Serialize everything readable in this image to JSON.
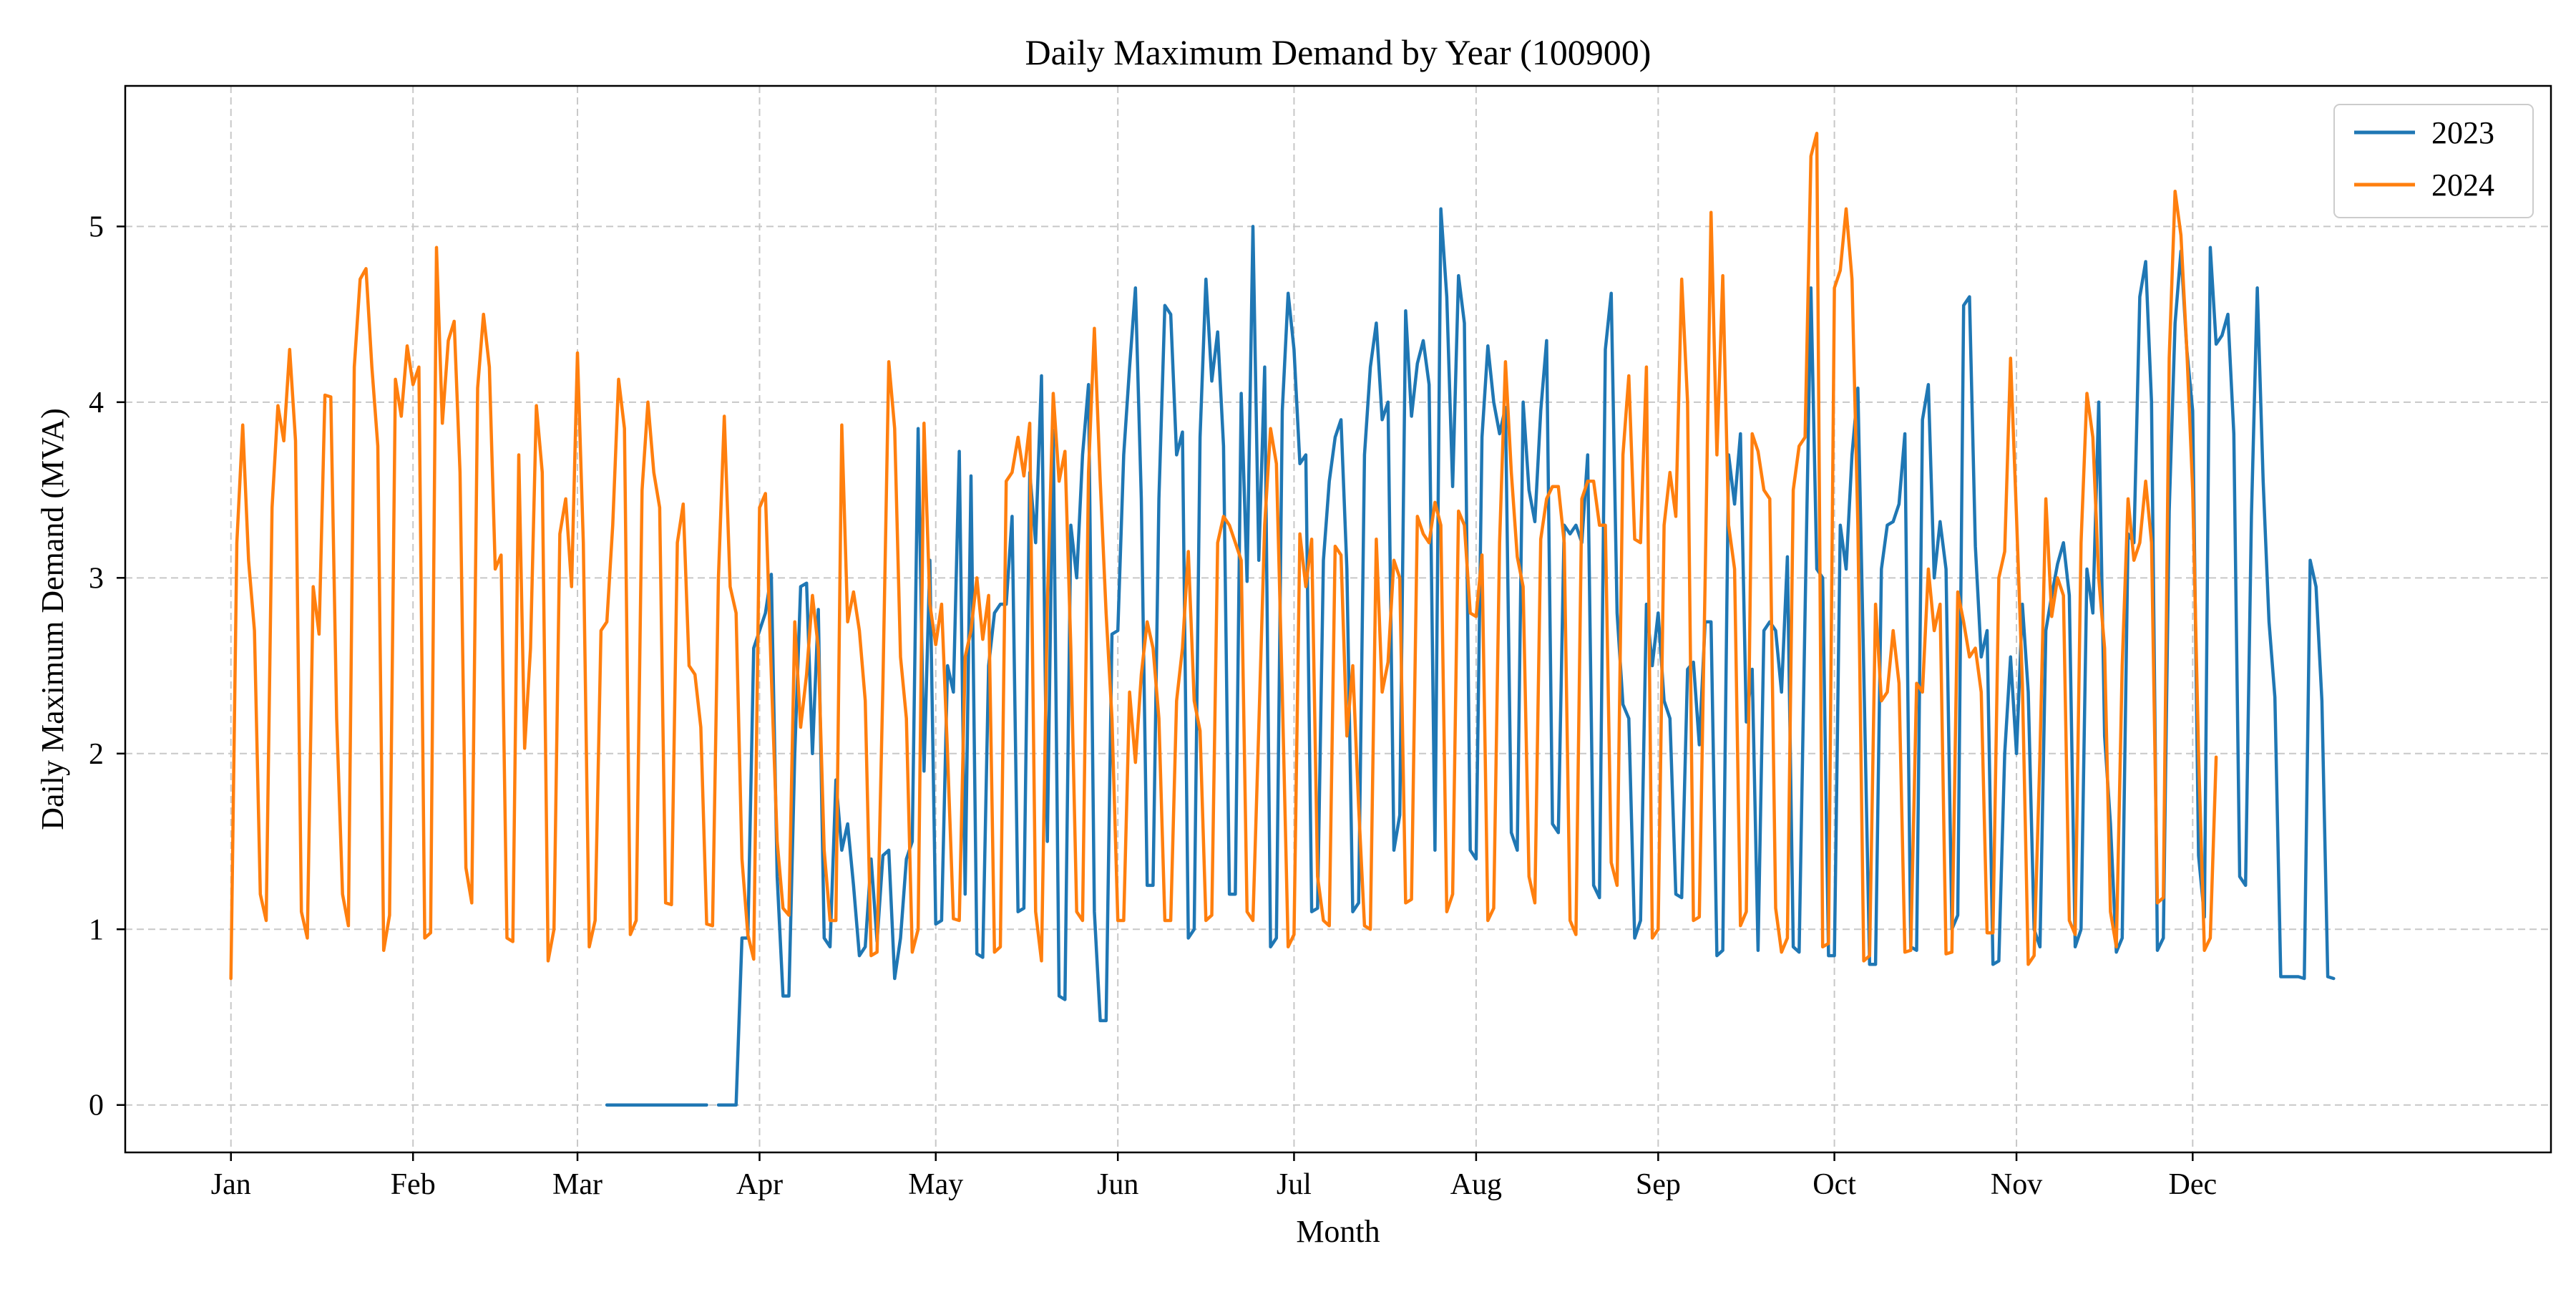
{
  "chart_data": {
    "type": "line",
    "title": "Daily Maximum Demand by Year (100900)",
    "xlabel": "Month",
    "ylabel": "Daily Maximum Demand (MVA)",
    "x_ticks": [
      "Jan",
      "Feb",
      "Mar",
      "Apr",
      "May",
      "Jun",
      "Jul",
      "Aug",
      "Sep",
      "Oct",
      "Nov",
      "Dec"
    ],
    "xlim": [
      -18,
      395
    ],
    "ylim": [
      -0.27,
      5.8
    ],
    "y_ticks": [
      0,
      1,
      2,
      3,
      4,
      5
    ],
    "grid": true,
    "legend_position": "top-right",
    "colors": {
      "2023": "#1f77b4",
      "2024": "#ff7f0e",
      "grid": "#c8c8c8"
    },
    "series": [
      {
        "name": "2023",
        "x_start": 64,
        "values": [
          0,
          0,
          0,
          0,
          0,
          0,
          0,
          0,
          0,
          0,
          0,
          0,
          0,
          0,
          0,
          0,
          0,
          0,
          null,
          0,
          0,
          0,
          0,
          0.95,
          0.95,
          2.6,
          2.7,
          2.8,
          3.02,
          1.3,
          0.62,
          0.62,
          2.0,
          2.95,
          2.97,
          2.0,
          2.82,
          0.95,
          0.9,
          1.85,
          1.45,
          1.6,
          1.25,
          0.85,
          0.9,
          1.4,
          0.93,
          1.42,
          1.45,
          0.72,
          0.95,
          1.4,
          1.5,
          3.85,
          1.9,
          3.1,
          1.03,
          1.05,
          2.5,
          2.35,
          3.72,
          1.2,
          3.58,
          0.86,
          0.84,
          2.5,
          2.8,
          2.85,
          2.85,
          3.35,
          1.1,
          1.12,
          3.6,
          3.2,
          4.15,
          1.5,
          3.84,
          0.62,
          0.6,
          3.3,
          3.0,
          3.7,
          4.1,
          1.1,
          0.48,
          0.48,
          2.68,
          2.7,
          3.7,
          4.2,
          4.65,
          3.45,
          1.25,
          1.25,
          3.45,
          4.55,
          4.5,
          3.7,
          3.83,
          0.95,
          1.0,
          3.8,
          4.7,
          4.12,
          4.4,
          3.75,
          1.2,
          1.2,
          4.05,
          2.98,
          5.0,
          3.1,
          4.2,
          0.9,
          0.95,
          3.95,
          4.62,
          4.3,
          3.65,
          3.7,
          1.1,
          1.12,
          3.1,
          3.55,
          3.8,
          3.9,
          3.05,
          1.1,
          1.15,
          3.7,
          4.2,
          4.45,
          3.9,
          4.0,
          1.45,
          1.65,
          4.52,
          3.92,
          4.22,
          4.35,
          4.1,
          1.45,
          5.1,
          4.6,
          3.52,
          4.72,
          4.45,
          1.45,
          1.4,
          3.8,
          4.32,
          4.0,
          3.82,
          3.97,
          1.55,
          1.45,
          4.0,
          3.5,
          3.32,
          3.95,
          4.35,
          1.6,
          1.55,
          3.3,
          3.25,
          3.3,
          3.2,
          3.7,
          1.25,
          1.18,
          4.3,
          4.62,
          2.8,
          2.28,
          2.2,
          0.95,
          1.05,
          2.85,
          2.5,
          2.8,
          2.3,
          2.2,
          1.2,
          1.18,
          2.48,
          2.52,
          2.05,
          2.75,
          2.75,
          0.85,
          0.88,
          3.7,
          3.42,
          3.82,
          2.18,
          2.48,
          0.88,
          2.7,
          2.75,
          2.7,
          2.35,
          3.12,
          0.9,
          0.87,
          2.8,
          4.65,
          3.05,
          3.0,
          0.85,
          0.85,
          3.3,
          3.05,
          3.7,
          4.08,
          2.48,
          0.8,
          0.8,
          3.05,
          3.3,
          3.32,
          3.42,
          3.82,
          0.9,
          0.88,
          3.9,
          4.1,
          3.0,
          3.32,
          3.05,
          1.0,
          1.08,
          4.55,
          4.6,
          3.18,
          2.55,
          2.7,
          0.8,
          0.82,
          2.0,
          2.55,
          2.0,
          2.85,
          2.35,
          1.0,
          0.9,
          2.7,
          2.9,
          3.08,
          3.2,
          2.9,
          0.9,
          1.0,
          3.05,
          2.8,
          4.0,
          2.1,
          1.6,
          0.87,
          0.95,
          3.25,
          3.2,
          4.6,
          4.8,
          4.0,
          0.88,
          0.95,
          3.38,
          4.45,
          4.86,
          4.3,
          3.95,
          1.42,
          1.07,
          4.88,
          4.33,
          4.38,
          4.5,
          3.82,
          1.3,
          1.25,
          3.35,
          4.65,
          3.55,
          2.75,
          2.32,
          0.73,
          0.73,
          0.73,
          0.73,
          0.72,
          3.1,
          2.95,
          2.3,
          0.73,
          0.72
        ]
      },
      {
        "name": "2024",
        "x_start": 0,
        "values": [
          0.72,
          3.2,
          3.87,
          3.1,
          2.7,
          1.2,
          1.05,
          3.4,
          3.98,
          3.78,
          4.3,
          3.78,
          1.1,
          0.95,
          2.95,
          2.68,
          4.04,
          4.03,
          2.2,
          1.2,
          1.02,
          4.2,
          4.7,
          4.76,
          4.2,
          3.75,
          0.88,
          1.08,
          4.13,
          3.92,
          4.32,
          4.1,
          4.2,
          0.95,
          0.98,
          4.88,
          3.88,
          4.35,
          4.46,
          3.6,
          1.35,
          1.15,
          4.08,
          4.5,
          4.2,
          3.05,
          3.13,
          0.95,
          0.93,
          3.7,
          2.03,
          2.6,
          3.98,
          3.6,
          0.82,
          1.0,
          3.25,
          3.45,
          2.95,
          4.28,
          3.2,
          0.9,
          1.05,
          2.7,
          2.75,
          3.3,
          4.13,
          3.85,
          0.97,
          1.05,
          3.5,
          4.0,
          3.6,
          3.4,
          1.15,
          1.14,
          3.2,
          3.42,
          2.5,
          2.45,
          2.15,
          1.03,
          1.02,
          3.0,
          3.92,
          2.95,
          2.8,
          1.4,
          0.97,
          0.83,
          3.4,
          3.48,
          2.45,
          1.5,
          1.12,
          1.08,
          2.75,
          2.15,
          2.45,
          2.9,
          2.6,
          1.45,
          1.05,
          1.05,
          3.87,
          2.75,
          2.92,
          2.7,
          2.3,
          0.85,
          0.87,
          2.4,
          4.23,
          3.85,
          2.55,
          2.2,
          0.87,
          1.0,
          3.88,
          2.85,
          2.62,
          2.85,
          2.0,
          1.06,
          1.05,
          2.55,
          2.7,
          3.0,
          2.65,
          2.9,
          0.87,
          0.9,
          3.55,
          3.6,
          3.8,
          3.58,
          3.88,
          1.1,
          0.82,
          2.85,
          4.05,
          3.55,
          3.72,
          2.6,
          1.1,
          1.05,
          3.6,
          4.42,
          3.55,
          2.8,
          2.2,
          1.05,
          1.05,
          2.35,
          1.95,
          2.45,
          2.75,
          2.6,
          2.2,
          1.05,
          1.05,
          2.3,
          2.6,
          3.15,
          2.3,
          2.13,
          1.05,
          1.08,
          3.2,
          3.35,
          3.3,
          3.2,
          3.1,
          1.1,
          1.05,
          2.15,
          3.3,
          3.85,
          3.65,
          2.35,
          0.9,
          0.97,
          3.25,
          2.95,
          3.22,
          1.3,
          1.05,
          1.02,
          3.18,
          3.13,
          2.1,
          2.5,
          1.7,
          1.02,
          1.0,
          3.22,
          2.35,
          2.52,
          3.1,
          3.0,
          1.15,
          1.17,
          3.35,
          3.25,
          3.2,
          3.43,
          3.3,
          1.1,
          1.2,
          3.38,
          3.3,
          2.8,
          2.78,
          3.13,
          1.05,
          1.12,
          3.2,
          4.23,
          3.6,
          3.12,
          2.95,
          1.3,
          1.15,
          3.22,
          3.45,
          3.52,
          3.52,
          3.2,
          1.05,
          0.97,
          3.45,
          3.55,
          3.55,
          3.3,
          3.3,
          1.38,
          1.25,
          3.7,
          4.15,
          3.22,
          3.2,
          4.2,
          0.95,
          1.0,
          3.3,
          3.6,
          3.35,
          4.7,
          4.0,
          1.05,
          1.07,
          3.0,
          5.08,
          3.7,
          4.72,
          3.3,
          3.05,
          1.02,
          1.1,
          3.82,
          3.72,
          3.5,
          3.45,
          1.12,
          0.87,
          0.95,
          3.5,
          3.75,
          3.8,
          5.4,
          5.53,
          0.9,
          0.92,
          4.65,
          4.75,
          5.1,
          4.7,
          3.3,
          0.82,
          0.85,
          2.85,
          2.3,
          2.35,
          2.7,
          2.4,
          0.87,
          0.88,
          2.4,
          2.35,
          3.05,
          2.7,
          2.85,
          0.86,
          0.87,
          2.92,
          2.75,
          2.55,
          2.6,
          2.35,
          0.98,
          0.98,
          3.0,
          3.15,
          4.25,
          3.35,
          2.4,
          0.8,
          0.85,
          2.0,
          3.45,
          2.78,
          3.0,
          2.9,
          1.05,
          0.97,
          3.2,
          4.05,
          3.8,
          3.0,
          2.6,
          1.1,
          0.9,
          2.5,
          3.45,
          3.1,
          3.2,
          3.55,
          3.2,
          1.15,
          1.18,
          4.25,
          5.2,
          4.95,
          4.3,
          3.5,
          2.0,
          0.88,
          0.95,
          1.98
        ]
      }
    ]
  }
}
